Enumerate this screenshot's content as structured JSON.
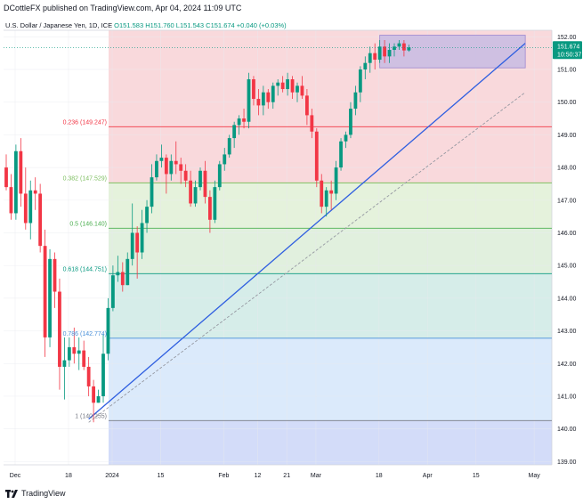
{
  "header": {
    "published": "DCottleFX published on TradingView.com, Apr 04, 2024 11:09 UTC",
    "symbol": "U.S. Dollar / Japanese Yen, 1D, ICE",
    "ohlc": "O151.583  H151.760  L151.543  C151.674  +0.040 (+0.03%)"
  },
  "footer": {
    "brand": "TradingView"
  },
  "price_tag": {
    "price": "151.674",
    "countdown": "10:50:37",
    "color": "#089981"
  },
  "colors": {
    "up": "#089981",
    "down": "#f23645",
    "trend": "#2f5fe0"
  },
  "chart_data": {
    "type": "candlestick",
    "ylim": [
      138.9,
      152.2
    ],
    "y_ticks": [
      "152.00",
      "151.00",
      "150.00",
      "149.00",
      "148.00",
      "147.00",
      "146.00",
      "145.00",
      "144.00",
      "143.00",
      "142.00",
      "141.00",
      "140.00",
      "139.00"
    ],
    "x_ticks": [
      {
        "label": "Dec",
        "i": 0
      },
      {
        "label": "18",
        "i": 11
      },
      {
        "label": "2024",
        "i": 20
      },
      {
        "label": "15",
        "i": 30
      },
      {
        "label": "Feb",
        "i": 43
      },
      {
        "label": "12",
        "i": 50
      },
      {
        "label": "21",
        "i": 56
      },
      {
        "label": "Mar",
        "i": 62
      },
      {
        "label": "18",
        "i": 75
      },
      {
        "label": "Apr",
        "i": 85
      },
      {
        "label": "15",
        "i": 95
      },
      {
        "label": "May",
        "i": 107
      }
    ],
    "fib_levels": [
      {
        "ratio": "0.236",
        "label": "0.236 (149.247)",
        "price": 149.247,
        "line": "#f23645",
        "fill": "#f9d9dc"
      },
      {
        "ratio": "0.382",
        "label": "0.382 (147.529)",
        "price": 147.529,
        "line": "#7fbf62",
        "fill": "#e5f2dc"
      },
      {
        "ratio": "0.5",
        "label": "0.5 (146.140)",
        "price": 146.14,
        "line": "#4caf50",
        "fill": "#e1f0de"
      },
      {
        "ratio": "0.618",
        "label": "0.618 (144.751)",
        "price": 144.751,
        "line": "#089981",
        "fill": "#d6ede9"
      },
      {
        "ratio": "0.786",
        "label": "0.786 (142.774)",
        "price": 142.774,
        "line": "#4a90d9",
        "fill": "#dbeafb"
      },
      {
        "ratio": "1",
        "label": "1 (140.255)",
        "price": 140.255,
        "line": "#787b86",
        "fill": "#e3e3e6"
      }
    ],
    "fib_top_fill": "#f9d9dc",
    "fib_bottom_fill": "#d3dcf9",
    "box": {
      "i0": 77,
      "i1": 107,
      "top": 152.05,
      "bottom": 151.05,
      "fill": "#c8bbe3"
    },
    "trend_solid": {
      "i0": 17,
      "p0": 140.3,
      "i1": 107,
      "p1": 151.8
    },
    "trend_dashed": {
      "i0": 17,
      "p0": 140.2,
      "i1": 107,
      "p1": 150.3
    },
    "candles": [
      [
        148.0,
        148.4,
        147.3,
        147.4
      ],
      [
        147.4,
        147.8,
        146.4,
        146.6
      ],
      [
        146.6,
        148.7,
        146.4,
        148.5
      ],
      [
        148.5,
        148.9,
        146.8,
        147.2
      ],
      [
        147.2,
        148.0,
        146.1,
        146.3
      ],
      [
        146.3,
        147.6,
        145.8,
        147.3
      ],
      [
        147.3,
        147.7,
        146.7,
        147.2
      ],
      [
        147.2,
        147.5,
        145.4,
        145.6
      ],
      [
        145.6,
        146.1,
        142.2,
        142.8
      ],
      [
        142.8,
        145.5,
        142.5,
        145.2
      ],
      [
        145.2,
        145.4,
        143.7,
        144.2
      ],
      [
        144.2,
        144.6,
        141.2,
        141.9
      ],
      [
        141.9,
        142.8,
        140.9,
        142.1
      ],
      [
        142.1,
        142.8,
        141.9,
        142.5
      ],
      [
        142.5,
        143.1,
        142.0,
        142.3
      ],
      [
        142.3,
        142.8,
        141.8,
        142.4
      ],
      [
        142.4,
        142.7,
        141.8,
        141.9
      ],
      [
        141.9,
        142.2,
        141.0,
        141.3
      ],
      [
        141.3,
        141.5,
        140.2,
        140.8
      ],
      [
        140.8,
        141.2,
        140.8,
        141.0
      ],
      [
        141.0,
        142.9,
        140.8,
        142.3
      ],
      [
        142.3,
        144.0,
        142.1,
        143.7
      ],
      [
        143.7,
        145.0,
        143.6,
        144.7
      ],
      [
        144.7,
        145.3,
        144.5,
        144.8
      ],
      [
        144.8,
        145.1,
        144.2,
        144.4
      ],
      [
        144.4,
        145.4,
        144.4,
        145.2
      ],
      [
        145.2,
        146.9,
        145.0,
        146.0
      ],
      [
        146.0,
        146.2,
        144.6,
        145.4
      ],
      [
        145.4,
        146.7,
        145.2,
        146.3
      ],
      [
        146.3,
        147.0,
        146.0,
        146.8
      ],
      [
        146.8,
        148.1,
        146.6,
        147.7
      ],
      [
        147.7,
        148.4,
        147.6,
        148.2
      ],
      [
        148.2,
        148.7,
        148.0,
        148.3
      ],
      [
        148.3,
        148.4,
        147.2,
        147.8
      ],
      [
        147.8,
        148.4,
        147.6,
        148.2
      ],
      [
        148.2,
        148.8,
        147.8,
        148.1
      ],
      [
        148.1,
        148.3,
        147.5,
        147.9
      ],
      [
        147.9,
        148.1,
        147.4,
        147.6
      ],
      [
        147.6,
        147.9,
        146.8,
        146.9
      ],
      [
        146.9,
        147.6,
        146.8,
        147.4
      ],
      [
        147.4,
        148.0,
        147.3,
        147.9
      ],
      [
        147.9,
        148.2,
        146.9,
        147.1
      ],
      [
        147.1,
        147.3,
        146.0,
        146.4
      ],
      [
        146.4,
        147.6,
        146.3,
        147.4
      ],
      [
        147.4,
        148.2,
        147.3,
        148.1
      ],
      [
        148.1,
        148.6,
        147.9,
        148.4
      ],
      [
        148.4,
        149.0,
        148.3,
        148.9
      ],
      [
        148.9,
        149.4,
        148.6,
        149.3
      ],
      [
        149.3,
        149.6,
        149.0,
        149.5
      ],
      [
        149.5,
        149.8,
        149.2,
        149.4
      ],
      [
        149.4,
        150.9,
        149.2,
        150.7
      ],
      [
        150.7,
        150.8,
        149.9,
        150.1
      ],
      [
        150.1,
        150.4,
        149.6,
        149.9
      ],
      [
        149.9,
        150.5,
        149.6,
        150.3
      ],
      [
        150.3,
        150.4,
        149.8,
        150.0
      ],
      [
        150.0,
        150.6,
        149.8,
        150.5
      ],
      [
        150.5,
        150.7,
        150.2,
        150.6
      ],
      [
        150.6,
        150.8,
        150.3,
        150.4
      ],
      [
        150.4,
        150.9,
        150.2,
        150.7
      ],
      [
        150.7,
        150.8,
        150.1,
        150.3
      ],
      [
        150.3,
        150.6,
        150.0,
        150.5
      ],
      [
        150.5,
        150.8,
        150.1,
        150.2
      ],
      [
        150.2,
        150.4,
        149.3,
        149.6
      ],
      [
        149.6,
        149.8,
        148.9,
        149.1
      ],
      [
        149.1,
        149.2,
        147.4,
        147.6
      ],
      [
        147.6,
        147.8,
        146.6,
        146.8
      ],
      [
        146.8,
        147.4,
        146.5,
        147.3
      ],
      [
        147.3,
        147.6,
        146.7,
        147.2
      ],
      [
        147.2,
        148.2,
        147.0,
        148.0
      ],
      [
        148.0,
        148.9,
        147.9,
        148.8
      ],
      [
        148.8,
        149.1,
        148.6,
        149.0
      ],
      [
        149.0,
        150.0,
        148.9,
        149.8
      ],
      [
        149.8,
        150.5,
        149.6,
        150.3
      ],
      [
        150.3,
        151.1,
        150.0,
        151.0
      ],
      [
        151.0,
        151.4,
        150.7,
        151.2
      ],
      [
        151.2,
        151.7,
        150.9,
        151.5
      ],
      [
        151.5,
        151.8,
        151.0,
        151.3
      ],
      [
        151.3,
        151.9,
        151.2,
        151.7
      ],
      [
        151.7,
        151.9,
        151.2,
        151.4
      ],
      [
        151.4,
        151.8,
        151.2,
        151.6
      ],
      [
        151.6,
        151.8,
        151.4,
        151.7
      ],
      [
        151.7,
        151.9,
        151.6,
        151.8
      ],
      [
        151.8,
        151.9,
        151.4,
        151.583
      ],
      [
        151.583,
        151.76,
        151.543,
        151.674
      ]
    ]
  }
}
